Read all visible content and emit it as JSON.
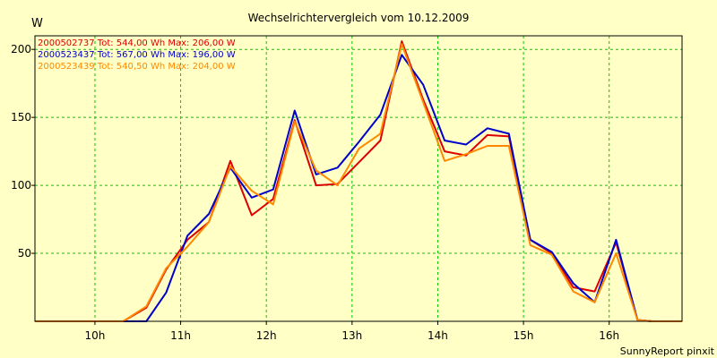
{
  "colors": {
    "background": "#ffffc6",
    "grid": "#00cc00",
    "axis": "#000000"
  },
  "chart_data": {
    "type": "line",
    "title": "Wechselrichtervergleich vom 10.12.2009",
    "ylabel": "W",
    "xlabel": "",
    "footer": "SunnyReport pinxit",
    "grid": true,
    "legend_position": "top-left",
    "ylim": [
      0,
      210
    ],
    "xlim": [
      9.3,
      16.85
    ],
    "y_ticks": [
      {
        "value": 50,
        "label": "50"
      },
      {
        "value": 100,
        "label": "100"
      },
      {
        "value": 150,
        "label": "150"
      },
      {
        "value": 200,
        "label": "200"
      }
    ],
    "x_ticks": [
      {
        "value": 10,
        "label": "10h"
      },
      {
        "value": 11,
        "label": "11h"
      },
      {
        "value": 12,
        "label": "12h"
      },
      {
        "value": 13,
        "label": "13h"
      },
      {
        "value": 14,
        "label": "14h"
      },
      {
        "value": 15,
        "label": "15h"
      },
      {
        "value": 16,
        "label": "16h"
      }
    ],
    "series": [
      {
        "name": "2000502737",
        "legend": "2000502737 Tot: 544,00 Wh Max: 206,00 W",
        "color": "#dd0000",
        "x": [
          9.3,
          10.0,
          10.33,
          10.6,
          10.83,
          11.08,
          11.33,
          11.58,
          11.83,
          12.08,
          12.33,
          12.58,
          12.83,
          13.08,
          13.33,
          13.58,
          13.83,
          14.08,
          14.33,
          14.58,
          14.83,
          15.08,
          15.33,
          15.58,
          15.83,
          16.08,
          16.33,
          16.5,
          16.85
        ],
        "values": [
          0,
          0,
          0,
          10,
          38,
          60,
          73,
          118,
          78,
          90,
          148,
          100,
          101,
          117,
          133,
          206,
          163,
          125,
          122,
          137,
          136,
          60,
          50,
          25,
          22,
          58,
          1,
          0,
          0
        ]
      },
      {
        "name": "2000523437",
        "legend": "2000523437 Tot: 567,00 Wh Max: 196,00 W",
        "color": "#0000cc",
        "x": [
          9.3,
          10.0,
          10.33,
          10.6,
          10.83,
          11.08,
          11.33,
          11.58,
          11.83,
          12.08,
          12.33,
          12.58,
          12.83,
          13.08,
          13.33,
          13.58,
          13.83,
          14.08,
          14.33,
          14.58,
          14.83,
          15.08,
          15.33,
          15.58,
          15.83,
          16.08,
          16.33,
          16.5,
          16.85
        ],
        "values": [
          0,
          0,
          0,
          0,
          21,
          63,
          79,
          113,
          91,
          97,
          155,
          108,
          113,
          132,
          152,
          196,
          174,
          133,
          130,
          142,
          138,
          60,
          51,
          28,
          14,
          60,
          1,
          0,
          0
        ]
      },
      {
        "name": "2000523439",
        "legend": "2000523439 Tot: 540,50 Wh Max: 204,00 W",
        "color": "#ff8800",
        "x": [
          9.3,
          10.0,
          10.33,
          10.6,
          10.83,
          11.08,
          11.33,
          11.58,
          11.83,
          12.08,
          12.33,
          12.58,
          12.83,
          13.08,
          13.33,
          13.58,
          13.83,
          14.08,
          14.33,
          14.58,
          14.83,
          15.08,
          15.33,
          15.58,
          15.83,
          16.08,
          16.33,
          16.5,
          16.85
        ],
        "values": [
          0,
          0,
          0,
          11,
          39,
          55,
          73,
          114,
          96,
          86,
          147,
          111,
          100,
          127,
          138,
          204,
          161,
          118,
          123,
          129,
          129,
          56,
          49,
          22,
          14,
          50,
          1,
          0,
          0
        ]
      }
    ]
  }
}
